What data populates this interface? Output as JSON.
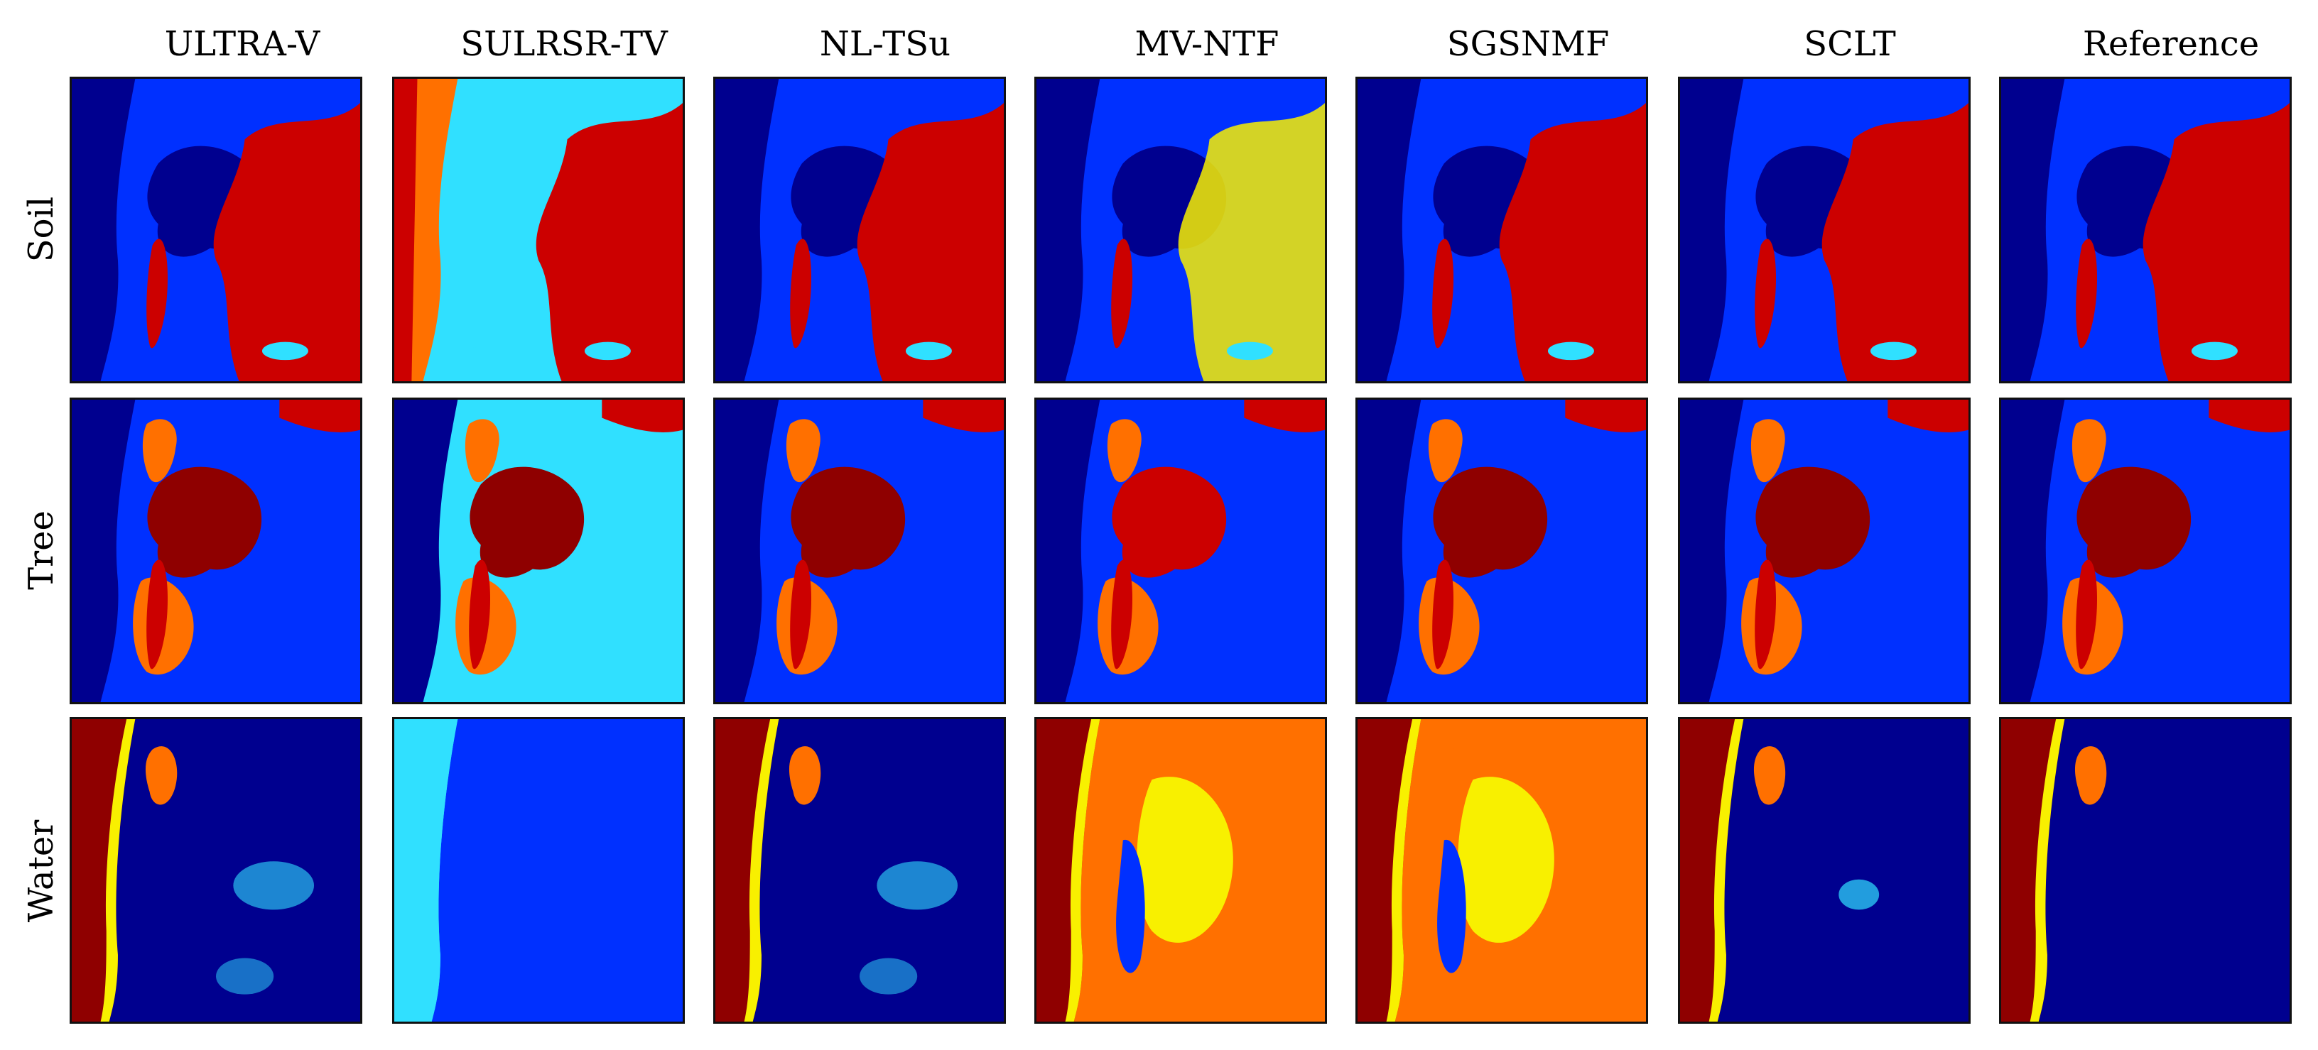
{
  "figure": {
    "columns": [
      {
        "label": "ULTRA-V"
      },
      {
        "label": "SULRSR-TV"
      },
      {
        "label": "NL-TSu"
      },
      {
        "label": "MV-NTF"
      },
      {
        "label": "SGSNMF"
      },
      {
        "label": "SCLT"
      },
      {
        "label": "Reference"
      }
    ],
    "rows": [
      {
        "label": "Soil"
      },
      {
        "label": "Tree"
      },
      {
        "label": "Water"
      }
    ],
    "colormap": "jet",
    "colors": {
      "deep_blue": "#00008f",
      "blue": "#0030ff",
      "cyan": "#30e0ff",
      "yellow": "#f8f000",
      "orange": "#ff7000",
      "red": "#cc0000",
      "dark_red": "#8f0000"
    }
  }
}
